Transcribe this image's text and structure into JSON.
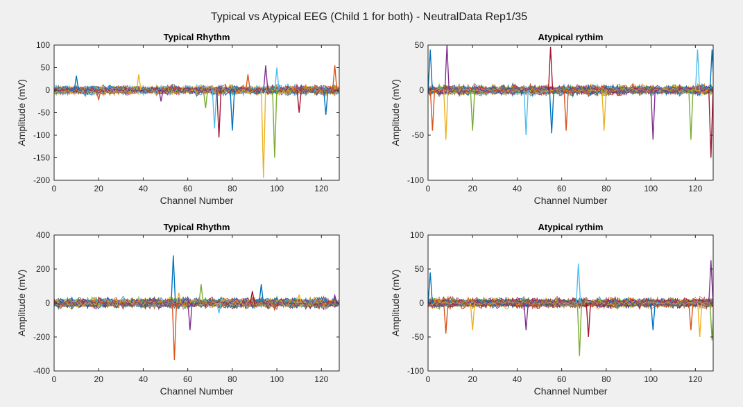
{
  "figure": {
    "title": "Typical vs Atypical EEG (Child 1 for both) - NeutralData Rep1/35"
  },
  "chart_data": [
    {
      "type": "line",
      "title": "Typical Rhythm",
      "xlabel": "Channel Number",
      "ylabel": "Amplitude (mV)",
      "xlim": [
        0,
        128
      ],
      "ylim": [
        -200,
        100
      ],
      "xticks": [
        "0",
        "20",
        "40",
        "60",
        "80",
        "100",
        "120"
      ],
      "yticks": [
        "-200",
        "-150",
        "-100",
        "-50",
        "0",
        "50",
        "100"
      ],
      "spikes": [
        {
          "x": 10,
          "value": 32
        },
        {
          "x": 20,
          "value": -22
        },
        {
          "x": 38,
          "value": 35
        },
        {
          "x": 48,
          "value": -25
        },
        {
          "x": 68,
          "value": -40
        },
        {
          "x": 72,
          "value": -85
        },
        {
          "x": 74,
          "value": -105
        },
        {
          "x": 80,
          "value": -90
        },
        {
          "x": 87,
          "value": 35
        },
        {
          "x": 94,
          "value": -195
        },
        {
          "x": 95,
          "value": 55
        },
        {
          "x": 99,
          "value": -150
        },
        {
          "x": 100,
          "value": 50
        },
        {
          "x": 110,
          "value": -50
        },
        {
          "x": 122,
          "value": -55
        },
        {
          "x": 126,
          "value": 55
        }
      ]
    },
    {
      "type": "line",
      "title": "Atypical rythim",
      "xlabel": "Channel Number",
      "ylabel": "Amplitude (mV)",
      "xlim": [
        0,
        128
      ],
      "ylim": [
        -100,
        50
      ],
      "xticks": [
        "0",
        "20",
        "40",
        "60",
        "80",
        "100",
        "120"
      ],
      "yticks": [
        "-100",
        "-50",
        "0",
        "50"
      ],
      "spikes": [
        {
          "x": 1,
          "value": 45
        },
        {
          "x": 2,
          "value": -45
        },
        {
          "x": 8,
          "value": -55
        },
        {
          "x": 8.5,
          "value": 50
        },
        {
          "x": 20,
          "value": -45
        },
        {
          "x": 44,
          "value": -50
        },
        {
          "x": 55,
          "value": 48
        },
        {
          "x": 55.5,
          "value": -48
        },
        {
          "x": 62,
          "value": -45
        },
        {
          "x": 79,
          "value": -45
        },
        {
          "x": 101,
          "value": -55
        },
        {
          "x": 118,
          "value": -55
        },
        {
          "x": 121,
          "value": 45
        },
        {
          "x": 127,
          "value": -75
        },
        {
          "x": 127.5,
          "value": 45
        }
      ]
    },
    {
      "type": "line",
      "title": "Typical Rhythm",
      "xlabel": "Channel Number",
      "ylabel": "Amplitude (mV)",
      "xlim": [
        0,
        128
      ],
      "ylim": [
        -400,
        400
      ],
      "xticks": [
        "0",
        "20",
        "40",
        "60",
        "80",
        "100",
        "120"
      ],
      "yticks": [
        "-400",
        "-200",
        "0",
        "200",
        "400"
      ],
      "spikes": [
        {
          "x": 53.5,
          "value": 280
        },
        {
          "x": 54,
          "value": -335
        },
        {
          "x": 56,
          "value": 60
        },
        {
          "x": 61,
          "value": -160
        },
        {
          "x": 66,
          "value": 110
        },
        {
          "x": 74,
          "value": -60
        },
        {
          "x": 89,
          "value": 70
        },
        {
          "x": 93,
          "value": 110
        },
        {
          "x": 99,
          "value": -40
        },
        {
          "x": 110,
          "value": 50
        },
        {
          "x": 126,
          "value": 45
        }
      ]
    },
    {
      "type": "line",
      "title": "Atypical rythim",
      "xlabel": "Channel Number",
      "ylabel": "Amplitude (mV)",
      "xlim": [
        0,
        128
      ],
      "ylim": [
        -100,
        100
      ],
      "xticks": [
        "0",
        "20",
        "40",
        "60",
        "80",
        "100",
        "120"
      ],
      "yticks": [
        "-100",
        "-50",
        "0",
        "50",
        "100"
      ],
      "spikes": [
        {
          "x": 1,
          "value": 45
        },
        {
          "x": 8,
          "value": -45
        },
        {
          "x": 20,
          "value": -40
        },
        {
          "x": 44,
          "value": -40
        },
        {
          "x": 68,
          "value": -78
        },
        {
          "x": 67.5,
          "value": 58
        },
        {
          "x": 72,
          "value": -50
        },
        {
          "x": 101,
          "value": -40
        },
        {
          "x": 118,
          "value": -40
        },
        {
          "x": 122,
          "value": -50
        },
        {
          "x": 127,
          "value": 63
        },
        {
          "x": 127.5,
          "value": -55
        }
      ]
    }
  ]
}
